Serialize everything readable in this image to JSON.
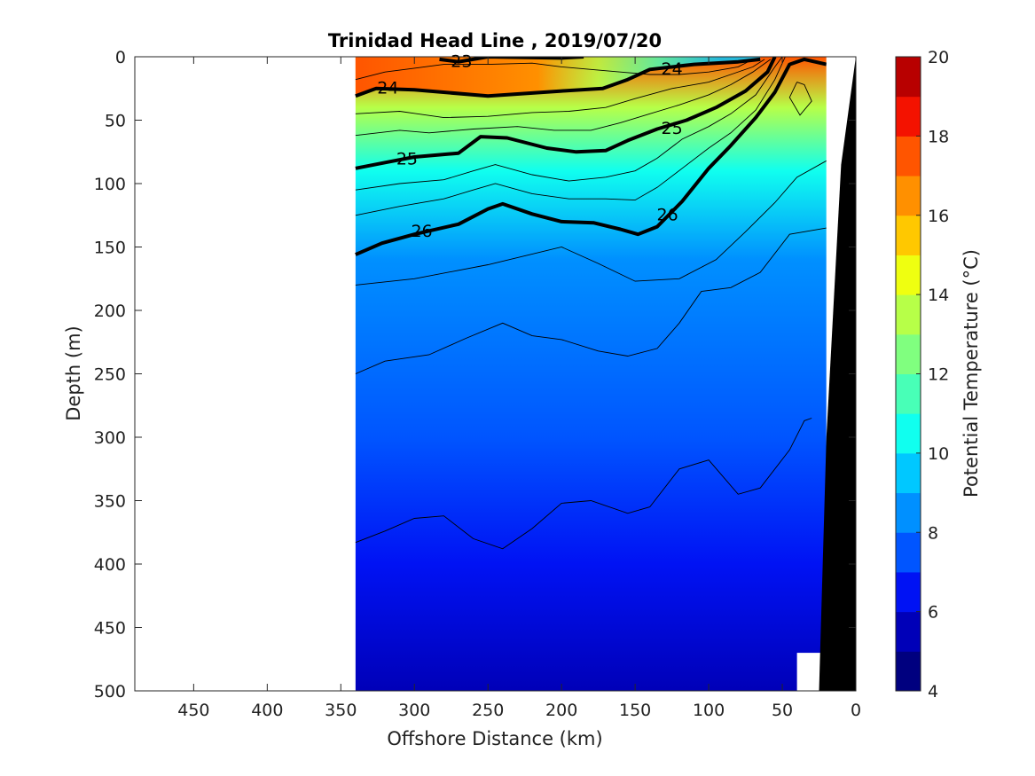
{
  "chart_data": {
    "type": "contour",
    "title": "Trinidad Head Line , 2019/07/20",
    "xlabel": "Offshore Distance (km)",
    "ylabel": "Depth (m)",
    "xlim": [
      490,
      0
    ],
    "ylim": [
      0,
      500
    ],
    "x_ticks": [
      "450",
      "400",
      "350",
      "300",
      "250",
      "200",
      "150",
      "100",
      "50",
      "0"
    ],
    "y_ticks": [
      "0",
      "50",
      "100",
      "150",
      "200",
      "250",
      "300",
      "350",
      "400",
      "450",
      "500"
    ],
    "colorbar": {
      "label": "Potential Temperature (°C)",
      "range": [
        4,
        20
      ],
      "tick_labels": [
        "4",
        "6",
        "8",
        "10",
        "12",
        "14",
        "16",
        "18",
        "20"
      ],
      "levels": [
        {
          "min": 4,
          "max": 5,
          "color": "#00007f"
        },
        {
          "min": 5,
          "max": 6,
          "color": "#0000b8"
        },
        {
          "min": 6,
          "max": 7,
          "color": "#0012f4"
        },
        {
          "min": 7,
          "max": 8,
          "color": "#0055ff"
        },
        {
          "min": 8,
          "max": 9,
          "color": "#0090ff"
        },
        {
          "min": 9,
          "max": 10,
          "color": "#00c8ff"
        },
        {
          "min": 10,
          "max": 11,
          "color": "#10ffef"
        },
        {
          "min": 11,
          "max": 12,
          "color": "#48ffb7"
        },
        {
          "min": 12,
          "max": 13,
          "color": "#80ff7f"
        },
        {
          "min": 13,
          "max": 14,
          "color": "#b7ff48"
        },
        {
          "min": 14,
          "max": 15,
          "color": "#efff10"
        },
        {
          "min": 15,
          "max": 16,
          "color": "#ffc800"
        },
        {
          "min": 16,
          "max": 17,
          "color": "#ff9000"
        },
        {
          "min": 17,
          "max": 18,
          "color": "#ff5500"
        },
        {
          "min": 18,
          "max": 19,
          "color": "#f41200"
        },
        {
          "min": 19,
          "max": 20,
          "color": "#b80000"
        }
      ]
    },
    "section_range_km": [
      340,
      20
    ],
    "isopycnal_labels": [
      {
        "text": "23",
        "x": 268,
        "y": 3
      },
      {
        "text": "24",
        "x": 318,
        "y": 24
      },
      {
        "text": "24",
        "x": 125,
        "y": 9
      },
      {
        "text": "25",
        "x": 305,
        "y": 80
      },
      {
        "text": "25",
        "x": 125,
        "y": 56
      },
      {
        "text": "26",
        "x": 295,
        "y": 137
      },
      {
        "text": "26",
        "x": 128,
        "y": 124
      }
    ],
    "bold_isopycnals": [
      {
        "label": "23",
        "points": [
          [
            283,
            2
          ],
          [
            270,
            4
          ],
          [
            250,
            0
          ],
          [
            200,
            1
          ],
          [
            185,
            0
          ]
        ]
      },
      {
        "label": "24",
        "points": [
          [
            340,
            31
          ],
          [
            326,
            25
          ],
          [
            300,
            26
          ],
          [
            250,
            31
          ],
          [
            200,
            27
          ],
          [
            172,
            25
          ],
          [
            155,
            18
          ],
          [
            140,
            10
          ],
          [
            110,
            6
          ],
          [
            80,
            4
          ],
          [
            65,
            2
          ]
        ]
      },
      {
        "label": "25",
        "points": [
          [
            340,
            88
          ],
          [
            318,
            83
          ],
          [
            300,
            79
          ],
          [
            270,
            76
          ],
          [
            255,
            63
          ],
          [
            237,
            64
          ],
          [
            210,
            72
          ],
          [
            190,
            75
          ],
          [
            170,
            74
          ],
          [
            155,
            66
          ],
          [
            135,
            57
          ],
          [
            115,
            50
          ],
          [
            95,
            40
          ],
          [
            75,
            27
          ],
          [
            60,
            12
          ],
          [
            55,
            0
          ]
        ]
      },
      {
        "label": "26",
        "points": [
          [
            340,
            156
          ],
          [
            322,
            147
          ],
          [
            300,
            140
          ],
          [
            270,
            132
          ],
          [
            250,
            120
          ],
          [
            240,
            116
          ],
          [
            220,
            124
          ],
          [
            200,
            130
          ],
          [
            178,
            131
          ],
          [
            160,
            136
          ],
          [
            148,
            140
          ],
          [
            135,
            134
          ],
          [
            118,
            114
          ],
          [
            100,
            88
          ],
          [
            85,
            70
          ],
          [
            68,
            48
          ],
          [
            55,
            28
          ],
          [
            45,
            6
          ],
          [
            35,
            2
          ],
          [
            20,
            6
          ]
        ]
      }
    ],
    "thin_contours": [
      [
        [
          340,
          180
        ],
        [
          300,
          175
        ],
        [
          250,
          164
        ],
        [
          200,
          150
        ],
        [
          175,
          163
        ],
        [
          150,
          177
        ],
        [
          120,
          175
        ],
        [
          95,
          160
        ],
        [
          75,
          138
        ],
        [
          55,
          115
        ],
        [
          40,
          95
        ],
        [
          20,
          82
        ]
      ],
      [
        [
          340,
          250
        ],
        [
          320,
          240
        ],
        [
          290,
          235
        ],
        [
          265,
          222
        ],
        [
          240,
          210
        ],
        [
          220,
          220
        ],
        [
          200,
          223
        ],
        [
          175,
          232
        ],
        [
          155,
          236
        ],
        [
          135,
          230
        ],
        [
          120,
          210
        ],
        [
          105,
          185
        ],
        [
          85,
          182
        ],
        [
          65,
          170
        ],
        [
          45,
          140
        ],
        [
          20,
          135
        ]
      ],
      [
        [
          340,
          383
        ],
        [
          320,
          374
        ],
        [
          300,
          364
        ],
        [
          280,
          362
        ],
        [
          260,
          380
        ],
        [
          240,
          388
        ],
        [
          220,
          372
        ],
        [
          200,
          352
        ],
        [
          180,
          350
        ],
        [
          155,
          360
        ],
        [
          140,
          355
        ],
        [
          120,
          325
        ],
        [
          100,
          318
        ],
        [
          80,
          345
        ],
        [
          65,
          340
        ],
        [
          45,
          310
        ],
        [
          35,
          287
        ],
        [
          30,
          285
        ]
      ],
      [
        [
          340,
          18
        ],
        [
          320,
          12
        ],
        [
          300,
          9
        ],
        [
          280,
          6
        ],
        [
          250,
          6
        ],
        [
          220,
          5
        ],
        [
          200,
          8
        ],
        [
          180,
          10
        ],
        [
          160,
          12
        ],
        [
          140,
          14
        ],
        [
          120,
          14
        ],
        [
          100,
          12
        ],
        [
          80,
          8
        ],
        [
          70,
          2
        ]
      ],
      [
        [
          340,
          45
        ],
        [
          310,
          43
        ],
        [
          280,
          48
        ],
        [
          250,
          47
        ],
        [
          220,
          44
        ],
        [
          195,
          43
        ],
        [
          170,
          40
        ],
        [
          150,
          33
        ],
        [
          125,
          25
        ],
        [
          100,
          20
        ],
        [
          85,
          14
        ],
        [
          70,
          8
        ],
        [
          62,
          2
        ]
      ],
      [
        [
          340,
          62
        ],
        [
          310,
          58
        ],
        [
          290,
          60
        ],
        [
          260,
          57
        ],
        [
          230,
          55
        ],
        [
          205,
          58
        ],
        [
          180,
          58
        ],
        [
          160,
          52
        ],
        [
          140,
          45
        ],
        [
          120,
          38
        ],
        [
          100,
          30
        ],
        [
          85,
          22
        ],
        [
          70,
          12
        ],
        [
          58,
          2
        ]
      ],
      [
        [
          340,
          105
        ],
        [
          310,
          100
        ],
        [
          280,
          97
        ],
        [
          260,
          90
        ],
        [
          245,
          85
        ],
        [
          220,
          93
        ],
        [
          195,
          98
        ],
        [
          170,
          95
        ],
        [
          150,
          90
        ],
        [
          135,
          80
        ],
        [
          118,
          65
        ],
        [
          100,
          55
        ],
        [
          85,
          45
        ],
        [
          68,
          30
        ],
        [
          55,
          8
        ],
        [
          50,
          0
        ]
      ],
      [
        [
          340,
          125
        ],
        [
          310,
          118
        ],
        [
          280,
          112
        ],
        [
          260,
          105
        ],
        [
          245,
          100
        ],
        [
          220,
          108
        ],
        [
          195,
          112
        ],
        [
          170,
          112
        ],
        [
          150,
          113
        ],
        [
          135,
          103
        ],
        [
          118,
          88
        ],
        [
          100,
          72
        ],
        [
          85,
          60
        ],
        [
          68,
          42
        ],
        [
          55,
          18
        ],
        [
          48,
          0
        ]
      ],
      [
        [
          40,
          20
        ],
        [
          45,
          32
        ],
        [
          38,
          46
        ],
        [
          30,
          35
        ],
        [
          35,
          22
        ],
        [
          40,
          20
        ]
      ]
    ],
    "mask": {
      "label": "bathymetry",
      "color": "#000000",
      "points": [
        [
          25,
          500
        ],
        [
          20,
          300
        ],
        [
          10,
          85
        ],
        [
          0,
          0
        ],
        [
          0,
          500
        ]
      ]
    }
  }
}
